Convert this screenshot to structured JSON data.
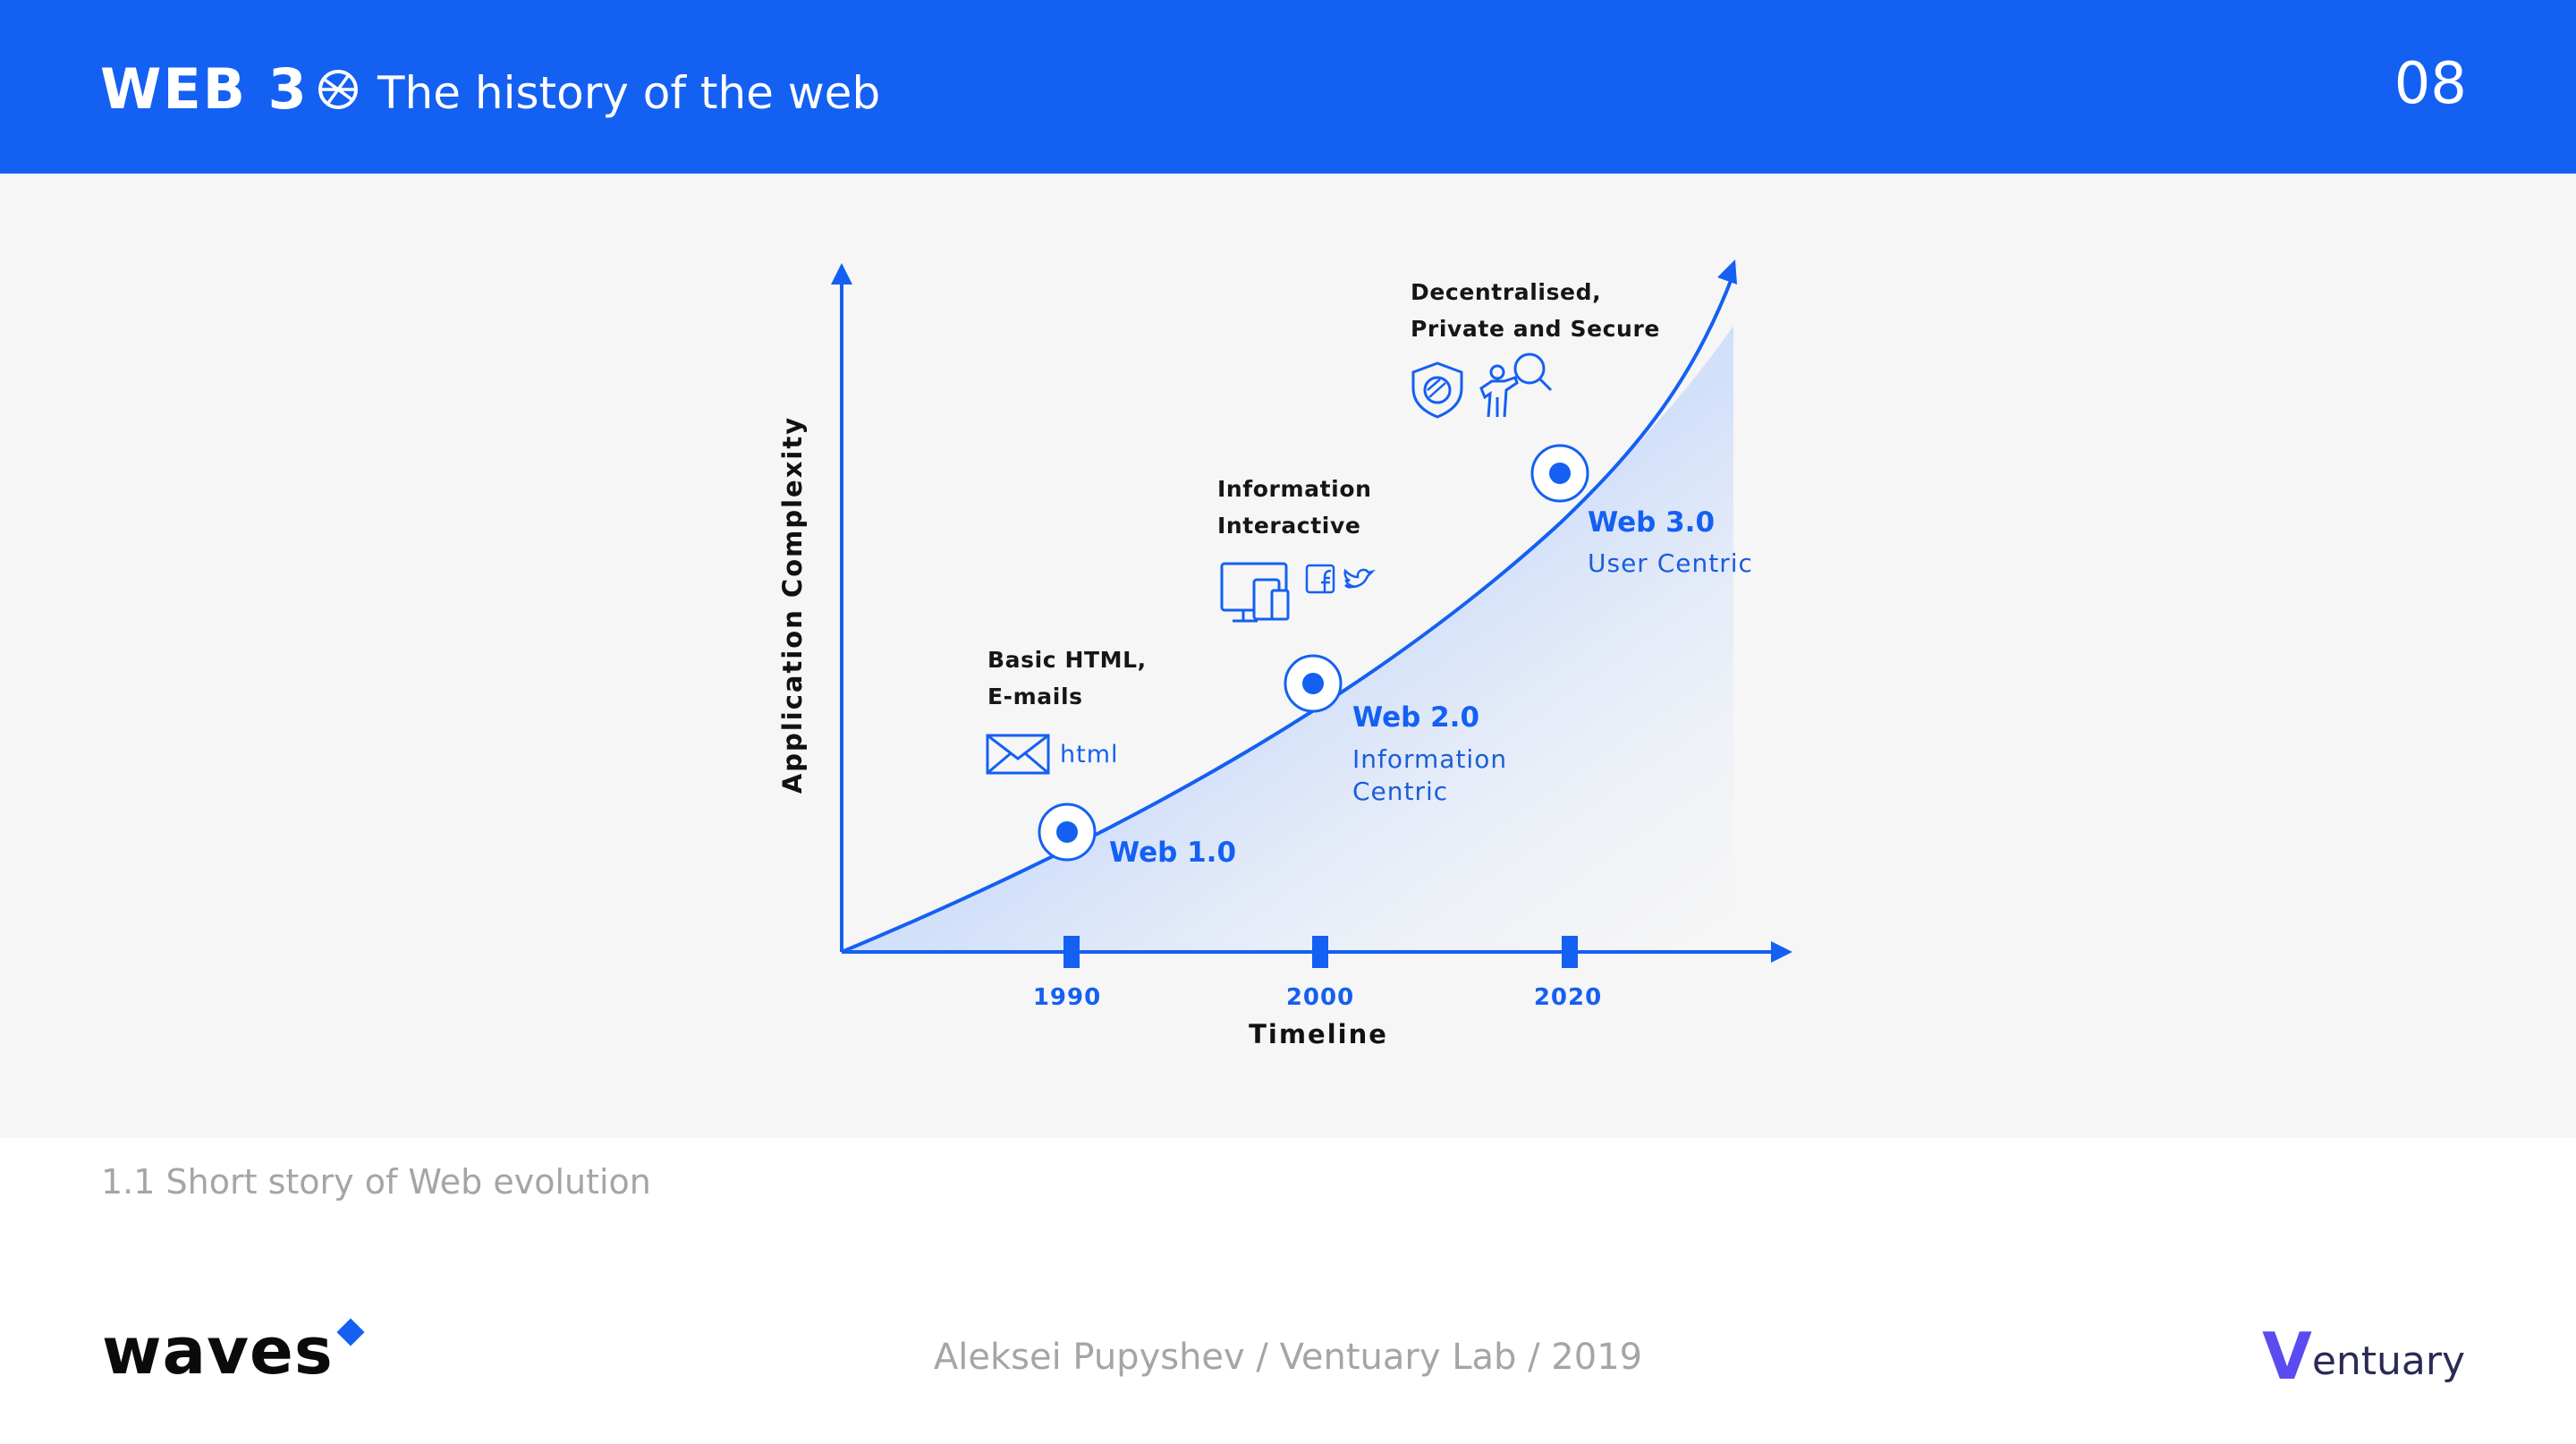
{
  "header": {
    "logo_text": "WEB 3",
    "title": "The history of the web",
    "page_number": "08"
  },
  "diagram": {
    "y_axis_label": "Application Complexity",
    "x_axis_label": "Timeline",
    "years": [
      "1990",
      "2000",
      "2020"
    ],
    "eras": [
      {
        "name": "Web 1.0",
        "subtitle": [],
        "description": [
          "Basic HTML,",
          "E-mails"
        ],
        "icon_label": "html",
        "icons": [
          "envelope-icon"
        ]
      },
      {
        "name": "Web 2.0",
        "subtitle": [
          "Information",
          "Centric"
        ],
        "description": [
          "Information",
          "Interactive"
        ],
        "icons": [
          "devices-icon",
          "facebook-icon",
          "twitter-icon"
        ]
      },
      {
        "name": "Web 3.0",
        "subtitle": [
          "User Centric"
        ],
        "description": [
          "Decentralised,",
          "Private and Secure"
        ],
        "icons": [
          "shield-icon",
          "person-search-icon"
        ]
      }
    ],
    "colors": {
      "accent": "#1460f2",
      "panel": "#f6f6f6"
    }
  },
  "caption": "1.1 Short story of Web evolution",
  "footer": {
    "waves_logo": "waves",
    "author": "Aleksei Pupyshev / Ventuary Lab / 2019",
    "ventuary_v": "V",
    "ventuary_rest": "entuary"
  }
}
